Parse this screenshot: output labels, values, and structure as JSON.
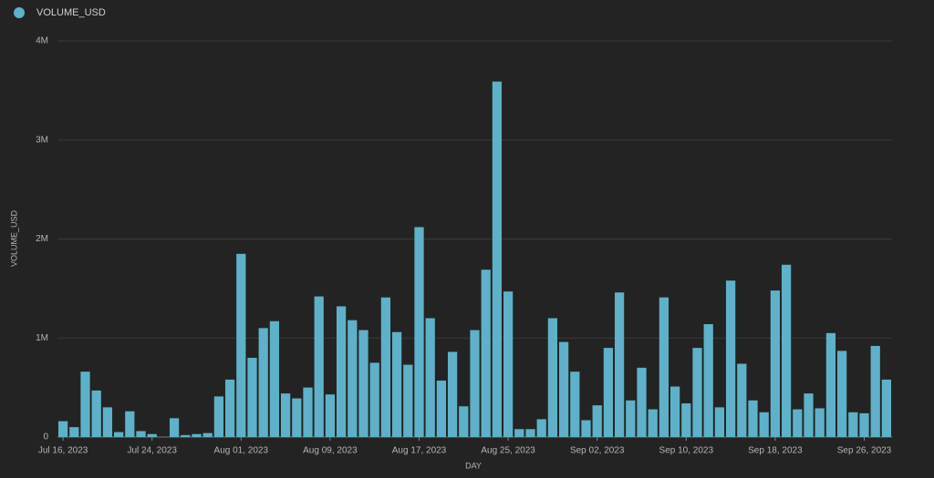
{
  "chart_data": {
    "type": "bar",
    "legend": "top-left",
    "series": [
      {
        "name": "VOLUME_USD",
        "color": "#5eb1c8",
        "values": [
          160000,
          100000,
          660000,
          470000,
          300000,
          50000,
          260000,
          60000,
          30000,
          0,
          190000,
          20000,
          30000,
          40000,
          410000,
          580000,
          1850000,
          800000,
          1100000,
          1170000,
          440000,
          390000,
          500000,
          1420000,
          430000,
          1320000,
          1180000,
          1080000,
          750000,
          1410000,
          1060000,
          730000,
          2120000,
          1200000,
          570000,
          860000,
          310000,
          1080000,
          1690000,
          3590000,
          1470000,
          80000,
          80000,
          180000,
          1200000,
          960000,
          660000,
          170000,
          320000,
          900000,
          1460000,
          370000,
          700000,
          280000,
          1410000,
          510000,
          340000,
          900000,
          1140000,
          300000,
          1580000,
          740000,
          370000,
          250000,
          1480000,
          1740000,
          280000,
          440000,
          290000,
          1050000,
          870000,
          250000,
          240000,
          920000,
          580000
        ]
      }
    ],
    "x": [
      "2023-07-16",
      "2023-07-17",
      "2023-07-18",
      "2023-07-19",
      "2023-07-20",
      "2023-07-21",
      "2023-07-22",
      "2023-07-23",
      "2023-07-24",
      "2023-07-25",
      "2023-07-26",
      "2023-07-27",
      "2023-07-28",
      "2023-07-29",
      "2023-07-30",
      "2023-07-31",
      "2023-08-01",
      "2023-08-02",
      "2023-08-03",
      "2023-08-04",
      "2023-08-05",
      "2023-08-06",
      "2023-08-07",
      "2023-08-08",
      "2023-08-09",
      "2023-08-10",
      "2023-08-11",
      "2023-08-12",
      "2023-08-13",
      "2023-08-14",
      "2023-08-15",
      "2023-08-16",
      "2023-08-17",
      "2023-08-18",
      "2023-08-19",
      "2023-08-20",
      "2023-08-21",
      "2023-08-22",
      "2023-08-23",
      "2023-08-24",
      "2023-08-25",
      "2023-08-26",
      "2023-08-27",
      "2023-08-28",
      "2023-08-29",
      "2023-08-30",
      "2023-08-31",
      "2023-09-01",
      "2023-09-02",
      "2023-09-03",
      "2023-09-04",
      "2023-09-05",
      "2023-09-06",
      "2023-09-07",
      "2023-09-08",
      "2023-09-09",
      "2023-09-10",
      "2023-09-11",
      "2023-09-12",
      "2023-09-13",
      "2023-09-14",
      "2023-09-15",
      "2023-09-16",
      "2023-09-17",
      "2023-09-18",
      "2023-09-19",
      "2023-09-20",
      "2023-09-21",
      "2023-09-22",
      "2023-09-23",
      "2023-09-24",
      "2023-09-25",
      "2023-09-26",
      "2023-09-27",
      "2023-09-28"
    ],
    "xticks": [
      {
        "value": "2023-07-16",
        "label": "Jul 16, 2023"
      },
      {
        "value": "2023-07-24",
        "label": "Jul 24, 2023"
      },
      {
        "value": "2023-08-01",
        "label": "Aug 01, 2023"
      },
      {
        "value": "2023-08-09",
        "label": "Aug 09, 2023"
      },
      {
        "value": "2023-08-17",
        "label": "Aug 17, 2023"
      },
      {
        "value": "2023-08-25",
        "label": "Aug 25, 2023"
      },
      {
        "value": "2023-09-02",
        "label": "Sep 02, 2023"
      },
      {
        "value": "2023-09-10",
        "label": "Sep 10, 2023"
      },
      {
        "value": "2023-09-18",
        "label": "Sep 18, 2023"
      },
      {
        "value": "2023-09-26",
        "label": "Sep 26, 2023"
      }
    ],
    "xlabel": "DAY",
    "ylabel": "VOLUME_USD",
    "ylim": [
      0,
      4000000
    ],
    "yticks": [
      0,
      {
        "value": 1000000,
        "label": "1M"
      },
      {
        "value": 2000000,
        "label": "2M"
      },
      {
        "value": 3000000,
        "label": "3M"
      },
      {
        "value": 4000000,
        "label": "4M"
      }
    ],
    "grid": true
  }
}
